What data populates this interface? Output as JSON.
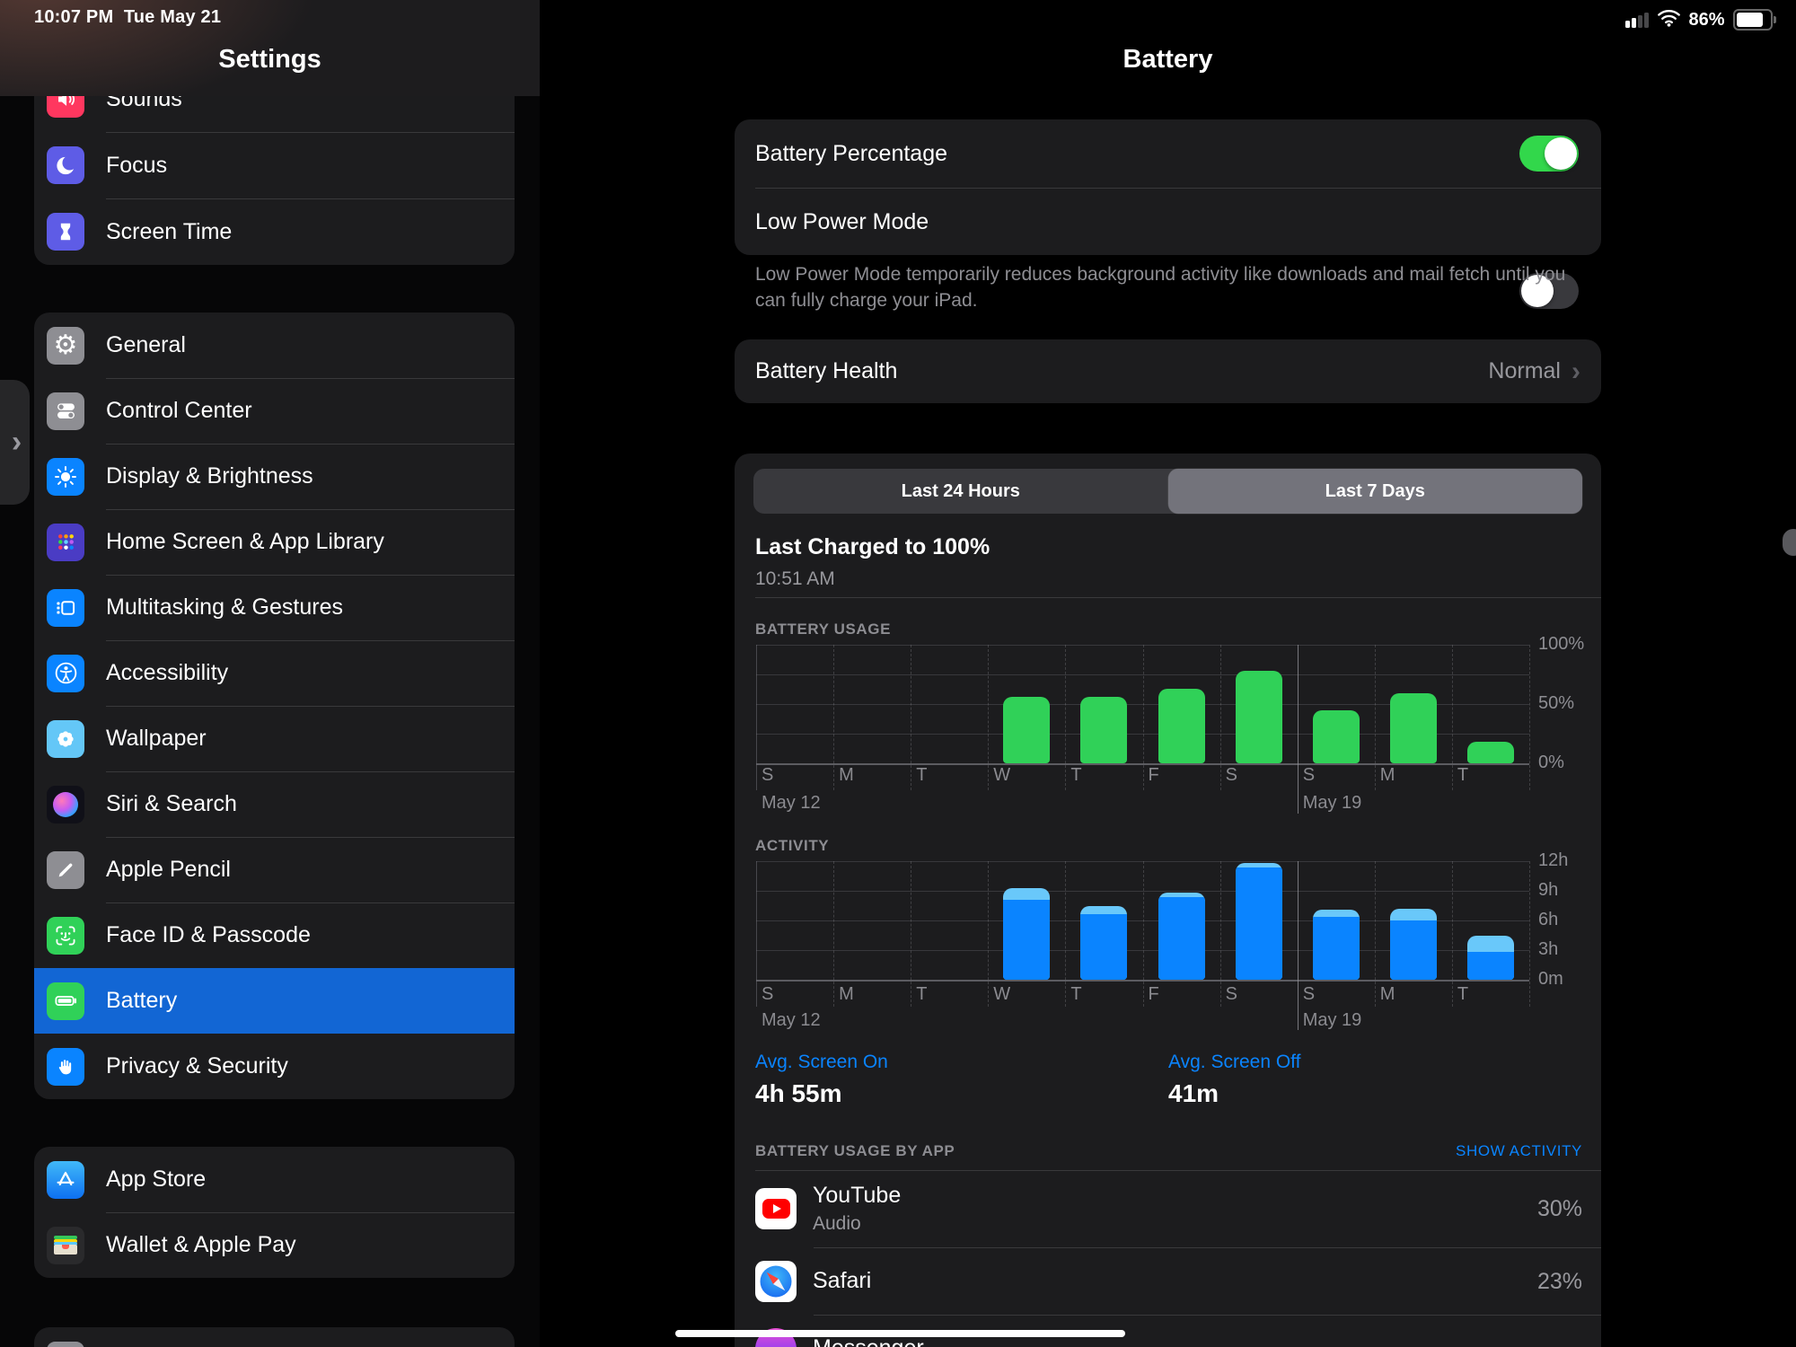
{
  "status_bar": {
    "time": "10:07 PM",
    "date": "Tue May 21",
    "battery_percent": "86%"
  },
  "sidebar": {
    "title": "Settings",
    "groups": [
      {
        "items": [
          {
            "label": "Sounds",
            "icon": "speaker-icon",
            "bg": "#ff375f"
          },
          {
            "label": "Focus",
            "icon": "moon-icon",
            "bg": "#5e5ce6"
          },
          {
            "label": "Screen Time",
            "icon": "hourglass-icon",
            "bg": "#5e5ce6"
          }
        ]
      },
      {
        "items": [
          {
            "label": "General",
            "icon": "gear-icon",
            "bg": "#8e8e93"
          },
          {
            "label": "Control Center",
            "icon": "toggles-icon",
            "bg": "#8e8e93"
          },
          {
            "label": "Display & Brightness",
            "icon": "sun-icon",
            "bg": "#0a84ff"
          },
          {
            "label": "Home Screen & App Library",
            "icon": "app-grid-icon",
            "bg": "#4a3cc4"
          },
          {
            "label": "Multitasking & Gestures",
            "icon": "multitask-icon",
            "bg": "#0a84ff"
          },
          {
            "label": "Accessibility",
            "icon": "accessibility-icon",
            "bg": "#0a84ff"
          },
          {
            "label": "Wallpaper",
            "icon": "flower-icon",
            "bg": "#64c7f7"
          },
          {
            "label": "Siri & Search",
            "icon": "siri-icon",
            "bg": "#101018"
          },
          {
            "label": "Apple Pencil",
            "icon": "pencil-icon",
            "bg": "#8e8e93"
          },
          {
            "label": "Face ID & Passcode",
            "icon": "faceid-icon",
            "bg": "#30d158"
          },
          {
            "label": "Battery",
            "icon": "battery-icon",
            "bg": "#30d158",
            "selected": true
          },
          {
            "label": "Privacy & Security",
            "icon": "hand-icon",
            "bg": "#0a84ff"
          }
        ]
      },
      {
        "items": [
          {
            "label": "App Store",
            "icon": "appstore-icon",
            "bg": "linear-gradient(180deg,#41b9f8,#0d70f2)"
          },
          {
            "label": "Wallet & Apple Pay",
            "icon": "wallet-icon",
            "bg": "#2a2a2c"
          }
        ]
      },
      {
        "items": [
          {
            "label": "",
            "icon": "placeholder-icon",
            "bg": "#8e8e93",
            "partial": true
          }
        ]
      }
    ]
  },
  "main": {
    "title": "Battery",
    "toggles": [
      {
        "label": "Battery Percentage",
        "on": true
      },
      {
        "label": "Low Power Mode",
        "on": false
      }
    ],
    "low_power_note": "Low Power Mode temporarily reduces background activity like downloads and mail fetch until you can fully charge your iPad.",
    "battery_health": {
      "label": "Battery Health",
      "value": "Normal"
    },
    "tabs": [
      {
        "label": "Last 24 Hours",
        "selected": false
      },
      {
        "label": "Last 7 Days",
        "selected": true
      }
    ],
    "last_charged": {
      "title": "Last Charged to 100%",
      "time": "10:51 AM"
    },
    "avg": {
      "screen_on_label": "Avg. Screen On",
      "screen_on_value": "4h 55m",
      "screen_off_label": "Avg. Screen Off",
      "screen_off_value": "41m"
    },
    "sections": {
      "by_app": "BATTERY USAGE BY APP",
      "show_activity": "SHOW ACTIVITY"
    },
    "apps": [
      {
        "name": "YouTube",
        "subtitle": "Audio",
        "percent": "30%",
        "icon": "youtube-icon"
      },
      {
        "name": "Safari",
        "subtitle": "",
        "percent": "23%",
        "icon": "safari-icon"
      },
      {
        "name": "Messenger",
        "subtitle": "",
        "percent": "",
        "icon": "messenger-icon"
      }
    ],
    "colors": {
      "accent_blue": "#0a84ff",
      "toggle_green": "#32d74b",
      "selection_blue": "#1266d4"
    }
  },
  "chart_data": [
    {
      "type": "bar",
      "title": "BATTERY USAGE",
      "categories": [
        "S",
        "M",
        "T",
        "W",
        "T",
        "F",
        "S",
        "S",
        "M",
        "T"
      ],
      "values": [
        0,
        0,
        0,
        56,
        56,
        63,
        78,
        45,
        59,
        18
      ],
      "unit": "percent",
      "ylim": [
        0,
        100
      ],
      "ylabel_ticks": [
        "100%",
        "",
        "50%",
        "",
        "0%"
      ],
      "x_annotations": [
        {
          "label": "May 12",
          "col": 0
        },
        {
          "label": "May 19",
          "col": 7
        }
      ],
      "week_divider_col": 7,
      "bar_color": "#30d158",
      "grid": true,
      "legend": "none"
    },
    {
      "type": "stacked-bar",
      "title": "ACTIVITY",
      "categories": [
        "S",
        "M",
        "T",
        "W",
        "T",
        "F",
        "S",
        "S",
        "M",
        "T"
      ],
      "series": [
        {
          "name": "screen-on",
          "color": "#0a84ff",
          "values": [
            0,
            0,
            0,
            8.1,
            6.6,
            8.4,
            11.4,
            6.4,
            6.0,
            2.8
          ]
        },
        {
          "name": "screen-off",
          "color": "#69c8fa",
          "values": [
            0,
            0,
            0,
            1.2,
            0.9,
            0.45,
            0.45,
            0.7,
            1.2,
            1.7
          ]
        }
      ],
      "unit": "hours",
      "ylim": [
        0,
        12
      ],
      "ylabel_ticks": [
        "12h",
        "9h",
        "6h",
        "3h",
        "0m"
      ],
      "x_annotations": [
        {
          "label": "May 12",
          "col": 0
        },
        {
          "label": "May 19",
          "col": 7
        }
      ],
      "week_divider_col": 7,
      "grid": true,
      "legend": "none"
    }
  ]
}
